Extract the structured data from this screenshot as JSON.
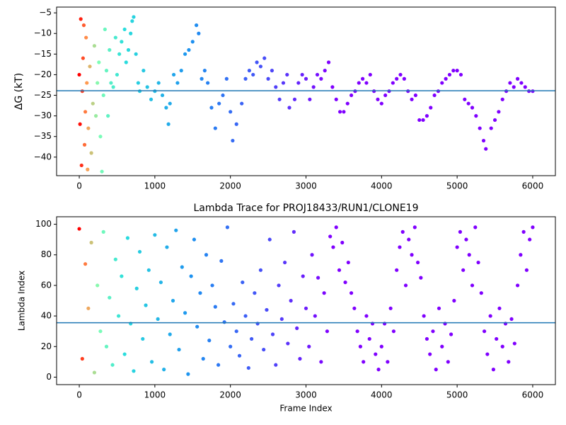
{
  "chart_data": [
    {
      "type": "scatter",
      "ylabel": "ΔG (kT)",
      "xlim": [
        -300,
        6300
      ],
      "ylim": [
        -44.5,
        -3.6
      ],
      "xticks": [
        0,
        1000,
        2000,
        3000,
        4000,
        5000,
        6000
      ],
      "yticks": [
        {
          "value": -40,
          "label": "−40"
        },
        {
          "value": -35,
          "label": "−35"
        },
        {
          "value": -30,
          "label": "−30"
        },
        {
          "value": -25,
          "label": "−25"
        },
        {
          "value": -20,
          "label": "−20"
        },
        {
          "value": -15,
          "label": "−15"
        },
        {
          "value": -10,
          "label": "−10"
        },
        {
          "value": -5,
          "label": "−5"
        }
      ],
      "hline": -23.9,
      "hline_color": "#1f77b4",
      "colormap": [
        [
          0,
          "#ff0000"
        ],
        [
          100,
          "#ff9a50"
        ],
        [
          250,
          "#80ffb4"
        ],
        [
          600,
          "#2adddd"
        ],
        [
          1500,
          "#1e90f0"
        ],
        [
          2500,
          "#4a4af8"
        ],
        [
          3300,
          "#8000ff"
        ]
      ],
      "series": [
        {
          "x": [
            0,
            10,
            20,
            30,
            40,
            50,
            60,
            70,
            80,
            90,
            100,
            110,
            120,
            140,
            160,
            180,
            200,
            220,
            240,
            260,
            280,
            300,
            320,
            340,
            360,
            380,
            400,
            420,
            450,
            480,
            500,
            530,
            560,
            600,
            620,
            650,
            680,
            700,
            720,
            750,
            780,
            800,
            850,
            900,
            950,
            1000,
            1050,
            1100,
            1150,
            1180,
            1200,
            1250,
            1300,
            1350,
            1400,
            1450,
            1500,
            1550,
            1580,
            1620,
            1660,
            1700,
            1750,
            1800,
            1850,
            1900,
            1950,
            2000,
            2030,
            2080,
            2150,
            2200,
            2250,
            2300,
            2350,
            2400,
            2450,
            2500,
            2550,
            2600,
            2650,
            2700,
            2750,
            2780,
            2850,
            2900,
            2950,
            3000,
            3050,
            3100,
            3150,
            3200,
            3250,
            3300,
            3350,
            3400,
            3450,
            3500,
            3550,
            3600,
            3650,
            3700,
            3750,
            3800,
            3850,
            3900,
            3950,
            4000,
            4050,
            4100,
            4150,
            4200,
            4250,
            4300,
            4350,
            4400,
            4450,
            4500,
            4550,
            4600,
            4650,
            4700,
            4750,
            4800,
            4850,
            4900,
            4950,
            5000,
            5050,
            5100,
            5150,
            5200,
            5250,
            5300,
            5350,
            5380,
            5450,
            5500,
            5550,
            5600,
            5650,
            5700,
            5750,
            5800,
            5850,
            5900,
            5950,
            6000
          ],
          "values": [
            -20,
            -32,
            -6.5,
            -42,
            -24,
            -16,
            -8,
            -37,
            -29,
            -11,
            -22,
            -43,
            -33,
            -18,
            -39,
            -27,
            -13,
            -30,
            -22,
            -17,
            -35,
            -43.5,
            -25,
            -9,
            -19,
            -30,
            -14,
            -22,
            -23,
            -11,
            -20,
            -15,
            -12,
            -9,
            -17,
            -14,
            -10,
            -7,
            -6,
            -15,
            -22,
            -24,
            -19,
            -23,
            -26,
            -24,
            -22,
            -25,
            -28,
            -32,
            -27,
            -20,
            -22,
            -19,
            -15,
            -14,
            -12,
            -8,
            -10,
            -21,
            -19,
            -22,
            -28,
            -33,
            -27,
            -25,
            -21,
            -29,
            -36,
            -32,
            -27,
            -21,
            -19,
            -20,
            -17,
            -18,
            -16,
            -21,
            -19,
            -23,
            -26,
            -22,
            -20,
            -28,
            -26,
            -22,
            -20,
            -21,
            -26,
            -23,
            -20,
            -21,
            -19,
            -17,
            -23,
            -26,
            -29,
            -29,
            -27,
            -25,
            -24,
            -22,
            -21,
            -22,
            -20,
            -24,
            -26,
            -27,
            -25,
            -24,
            -22,
            -21,
            -20,
            -21,
            -24,
            -26,
            -25,
            -31,
            -31,
            -30,
            -28,
            -25,
            -24,
            -22,
            -21,
            -20,
            -19,
            -19,
            -20,
            -26,
            -27,
            -28,
            -30,
            -33,
            -36,
            -38,
            -33,
            -31,
            -29,
            -26,
            -24,
            -22,
            -23,
            -21,
            -22,
            -23,
            -24,
            -24
          ]
        }
      ]
    },
    {
      "type": "scatter",
      "title": "Lambda Trace for PROJ18433/RUN1/CLONE19",
      "xlabel": "Frame Index",
      "ylabel": "Lambda Index",
      "xlim": [
        -300,
        6300
      ],
      "ylim": [
        -4.9,
        104.9
      ],
      "xticks": [
        0,
        1000,
        2000,
        3000,
        4000,
        5000,
        6000
      ],
      "yticks": [
        0,
        20,
        40,
        60,
        80,
        100
      ],
      "hline": 35.6,
      "hline_color": "#1f77b4",
      "colormap": [
        [
          0,
          "#ff0000"
        ],
        [
          100,
          "#ff9a50"
        ],
        [
          250,
          "#80ffb4"
        ],
        [
          600,
          "#2adddd"
        ],
        [
          1500,
          "#1e90f0"
        ],
        [
          2500,
          "#4a4af8"
        ],
        [
          3300,
          "#8000ff"
        ]
      ],
      "series": [
        {
          "x": [
            0,
            40,
            80,
            120,
            160,
            200,
            240,
            280,
            320,
            360,
            400,
            440,
            480,
            520,
            560,
            600,
            640,
            680,
            720,
            760,
            800,
            840,
            880,
            920,
            960,
            1000,
            1040,
            1080,
            1120,
            1160,
            1200,
            1240,
            1280,
            1320,
            1360,
            1400,
            1440,
            1480,
            1520,
            1560,
            1600,
            1640,
            1680,
            1720,
            1760,
            1800,
            1840,
            1880,
            1920,
            1960,
            2000,
            2040,
            2080,
            2120,
            2160,
            2200,
            2240,
            2280,
            2320,
            2360,
            2400,
            2440,
            2480,
            2520,
            2560,
            2600,
            2640,
            2680,
            2720,
            2760,
            2800,
            2840,
            2880,
            2920,
            2960,
            3000,
            3040,
            3080,
            3120,
            3160,
            3200,
            3240,
            3280,
            3320,
            3360,
            3400,
            3440,
            3480,
            3520,
            3560,
            3600,
            3640,
            3680,
            3720,
            3760,
            3800,
            3840,
            3880,
            3920,
            3960,
            4000,
            4040,
            4080,
            4120,
            4160,
            4200,
            4240,
            4280,
            4320,
            4360,
            4400,
            4440,
            4480,
            4520,
            4560,
            4600,
            4640,
            4680,
            4720,
            4760,
            4800,
            4840,
            4880,
            4920,
            4960,
            5000,
            5040,
            5080,
            5120,
            5160,
            5200,
            5240,
            5280,
            5320,
            5360,
            5400,
            5440,
            5480,
            5520,
            5560,
            5600,
            5640,
            5680,
            5720,
            5760,
            5800,
            5840,
            5880,
            5920,
            5960,
            6000
          ],
          "values": [
            97,
            12,
            74,
            45,
            88,
            3,
            60,
            30,
            95,
            20,
            52,
            8,
            77,
            40,
            66,
            15,
            91,
            35,
            4,
            58,
            82,
            25,
            47,
            70,
            10,
            93,
            38,
            62,
            5,
            85,
            28,
            50,
            96,
            18,
            72,
            42,
            2,
            66,
            90,
            33,
            55,
            12,
            80,
            24,
            60,
            46,
            8,
            76,
            36,
            98,
            20,
            48,
            30,
            14,
            62,
            40,
            6,
            25,
            55,
            35,
            70,
            18,
            44,
            90,
            28,
            8,
            60,
            38,
            75,
            22,
            50,
            95,
            32,
            12,
            66,
            45,
            20,
            80,
            40,
            65,
            10,
            55,
            30,
            92,
            85,
            98,
            70,
            88,
            62,
            75,
            55,
            45,
            30,
            20,
            10,
            40,
            25,
            35,
            15,
            5,
            20,
            35,
            10,
            45,
            30,
            70,
            85,
            95,
            60,
            90,
            80,
            98,
            75,
            65,
            40,
            25,
            15,
            30,
            5,
            45,
            20,
            35,
            10,
            28,
            50,
            85,
            95,
            70,
            90,
            80,
            60,
            98,
            75,
            55,
            30,
            15,
            40,
            5,
            25,
            45,
            20,
            35,
            10,
            38,
            22,
            60,
            80,
            95,
            70,
            90,
            98
          ]
        }
      ]
    }
  ]
}
